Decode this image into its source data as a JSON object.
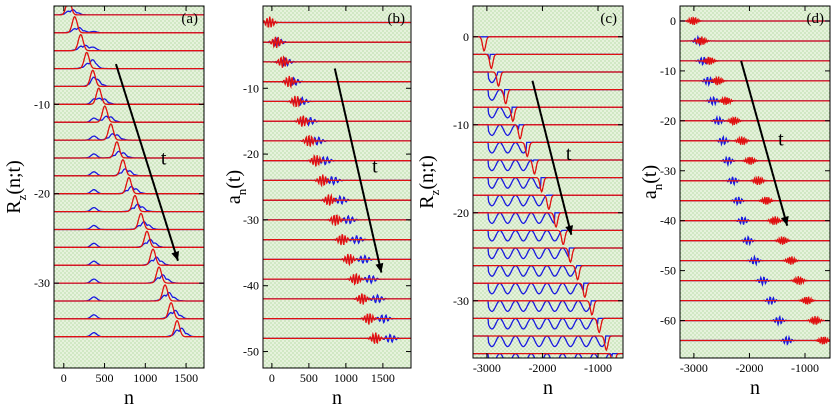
{
  "colors": {
    "bg": "#e6f2dc",
    "dots": "#7fbf6a",
    "red": "#e01010",
    "blue": "#1a1adf",
    "arrow": "#000000"
  },
  "chart_data": [
    {
      "type": "line",
      "panel_label": "(a)",
      "xlabel": "n",
      "ylabel_main": "R",
      "ylabel_sub": "z",
      "ylabel_tail": "(n;t)",
      "arrow_label": "t",
      "xlim": [
        -120,
        1720
      ],
      "ylim": [
        -39.5,
        1.0
      ],
      "xticks": [
        0,
        500,
        1000,
        1500
      ],
      "yticks": [
        -10,
        -20,
        -30
      ],
      "n_traces": 19,
      "trace_spacing": 2,
      "red_peak_start": 60,
      "red_peak_end": 1390,
      "red_width": 30,
      "blue_start": 60,
      "blue_fixed": 370,
      "blue_amp": 0.9,
      "arrow": {
        "x0": 640,
        "y0": -5.5,
        "x1": 1400,
        "y1": -27.5
      }
    },
    {
      "type": "line",
      "panel_label": "(b)",
      "xlabel": "n",
      "ylabel_main": "a",
      "ylabel_sub": "n",
      "ylabel_tail": "(t)",
      "arrow_label": "t",
      "xlim": [
        -120,
        1880
      ],
      "ylim": [
        -52.5,
        2.5
      ],
      "xticks": [
        0,
        500,
        1000,
        1500
      ],
      "yticks": [
        -10,
        -20,
        -30,
        -40,
        -50
      ],
      "n_traces": 17,
      "trace_spacing": 3,
      "red_peak_start": -30,
      "red_peak_end": 1400,
      "red_width": 45,
      "blue_offset": 200,
      "blue_amp": 0.6,
      "arrow": {
        "x0": 850,
        "y0": -7,
        "x1": 1480,
        "y1": -38
      }
    },
    {
      "type": "line",
      "panel_label": "(c)",
      "xlabel": "n",
      "ylabel_main": "R",
      "ylabel_sub": "z",
      "ylabel_tail": "(n;t)",
      "arrow_label": "t",
      "xlim": [
        -3250,
        -550
      ],
      "ylim": [
        -36.5,
        3.5
      ],
      "xticks": [
        -3000,
        -2000,
        -1000
      ],
      "yticks": [
        0,
        -10,
        -20,
        -30
      ],
      "n_traces": 19,
      "trace_spacing": 2,
      "red_peak_start": -3050,
      "red_peak_end": -720,
      "red_width": 28,
      "blue_start": -2980,
      "blue_amp": 1.2,
      "arrow": {
        "x0": -2180,
        "y0": -5,
        "x1": -1480,
        "y1": -22.5
      }
    },
    {
      "type": "line",
      "panel_label": "(d)",
      "xlabel": "n",
      "ylabel_main": "a",
      "ylabel_sub": "n",
      "ylabel_tail": "(t)",
      "arrow_label": "t",
      "xlim": [
        -3250,
        -550
      ],
      "ylim": [
        -67.5,
        3.0
      ],
      "xticks": [
        -3000,
        -2000,
        -1000
      ],
      "yticks": [
        0,
        -10,
        -20,
        -30,
        -40,
        -50,
        -60
      ],
      "n_traces": 17,
      "trace_spacing": 4,
      "red_peak_start": -3010,
      "red_peak_end": -670,
      "red_width": 60,
      "blue_offset": 650,
      "blue_amp": 0.8,
      "arrow": {
        "x0": -2150,
        "y0": -8,
        "x1": -1320,
        "y1": -41
      }
    }
  ]
}
